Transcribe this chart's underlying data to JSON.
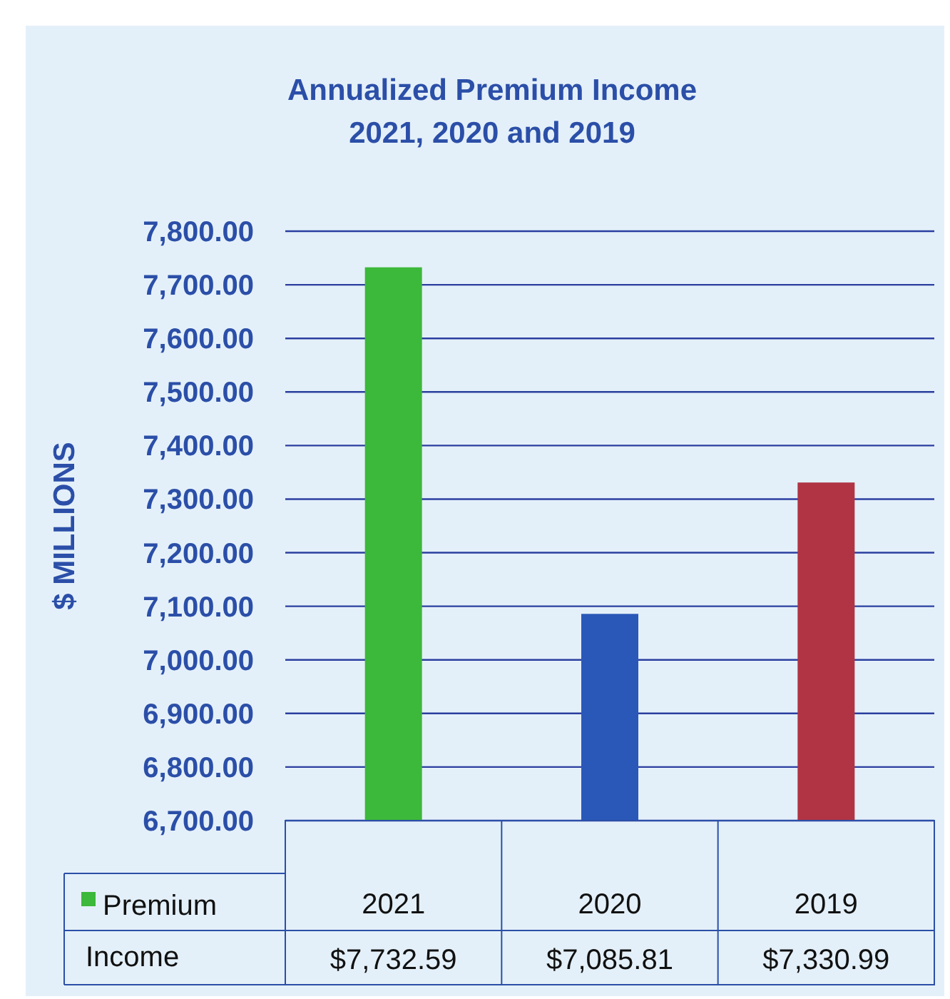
{
  "chart_data": {
    "type": "bar",
    "title": "Annualized Premium Income\n2021, 2020 and 2019",
    "ylabel": "$ MILLIONS",
    "categories": [
      "2021",
      "2020",
      "2019"
    ],
    "series": [
      {
        "name": "Premium Income",
        "colors": [
          "#3cb83a",
          "#2a58b8",
          "#b03444"
        ],
        "values": [
          7732.59,
          7085.81,
          7330.99
        ],
        "value_labels": [
          "$7,732.59",
          "$7,085.81",
          "$7,330.99"
        ]
      }
    ],
    "ylim": [
      6700,
      7800
    ],
    "yticks": [
      {
        "value": 6700,
        "label": "6,700.00"
      },
      {
        "value": 6800,
        "label": "6,800.00"
      },
      {
        "value": 6900,
        "label": "6,900.00"
      },
      {
        "value": 7000,
        "label": "7,000.00"
      },
      {
        "value": 7100,
        "label": "7,100.00"
      },
      {
        "value": 7200,
        "label": "7,200.00"
      },
      {
        "value": 7300,
        "label": "7,300.00"
      },
      {
        "value": 7400,
        "label": "7,400.00"
      },
      {
        "value": 7500,
        "label": "7,500.00"
      },
      {
        "value": 7600,
        "label": "7,600.00"
      },
      {
        "value": 7700,
        "label": "7,700.00"
      },
      {
        "value": 7800,
        "label": "7,800.00"
      }
    ],
    "grid": "y",
    "legend": "bottom left"
  }
}
